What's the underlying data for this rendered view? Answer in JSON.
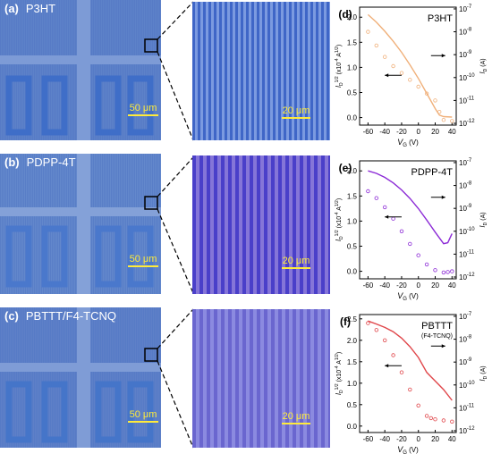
{
  "panels": [
    {
      "micro_label": "(a)",
      "material": "P3HT",
      "micro_scale": "50 μm",
      "zoom_scale": "20 μm",
      "plot_label": "(d)",
      "plot_title": "P3HT",
      "plot_subtitle": "",
      "line_color": "#f0b07a",
      "micro_color": "#5d82c9",
      "zoom_stripe_color": "#3f66c7",
      "zoom_bg_color": "#7b9ae0"
    },
    {
      "micro_label": "(b)",
      "material": "PDPP-4T",
      "micro_scale": "50 μm",
      "zoom_scale": "20 μm",
      "plot_label": "(e)",
      "plot_title": "PDPP-4T",
      "plot_subtitle": "",
      "line_color": "#8c2bd6",
      "micro_color": "#6388cc",
      "zoom_stripe_color": "#4a3fc9",
      "zoom_bg_color": "#8575d8"
    },
    {
      "micro_label": "(c)",
      "material": "PBTTT/F4-TCNQ",
      "micro_scale": "50 μm",
      "zoom_scale": "20 μm",
      "plot_label": "(f)",
      "plot_title": "PBTTT",
      "plot_subtitle": "(F4-TCNQ)",
      "line_color": "#e0464a",
      "micro_color": "#5e80c8",
      "zoom_stripe_color": "#6a66cf",
      "zoom_bg_color": "#8b8ae0"
    }
  ],
  "axis_text": {
    "xlabel": "V",
    "xlabel_sub": "G",
    "xlabel_unit": " (V)",
    "ylabel_left": "I",
    "ylabel_left_sub": "D",
    "ylabel_left_sup": "1/2",
    "ylabel_left_unit": " (x10",
    "ylabel_left_unit_sup": "-4",
    "ylabel_left_unit_tail": " A",
    "ylabel_left_unit_sup2": "1/2",
    "ylabel_left_unit_close": ")",
    "ylabel_right": "I",
    "ylabel_right_sub": "D",
    "ylabel_right_unit": " (A)"
  },
  "chart_data": [
    {
      "type": "line",
      "title": "P3HT",
      "x": [
        -60,
        -50,
        -40,
        -30,
        -20,
        -10,
        0,
        10,
        20,
        25,
        30,
        40
      ],
      "xlim": [
        -70,
        45
      ],
      "xticks": [
        "-60",
        "-40",
        "-20",
        "0",
        "20",
        "40"
      ],
      "ylim_left": [
        -0.15,
        2.2
      ],
      "yticks_left": [
        "0.0",
        "0.5",
        "1.0",
        "1.5",
        "2.0"
      ],
      "yticks_right": [
        "10",
        "10",
        "10",
        "10",
        "10",
        "10"
      ],
      "yticks_right_exp": [
        "-7",
        "-8",
        "-9",
        "-10",
        "-11",
        "-12"
      ],
      "series": [
        {
          "name": "",
          "axis": "left",
          "style": "line",
          "values": [
            2.05,
            1.9,
            1.72,
            1.52,
            1.3,
            1.05,
            0.78,
            0.48,
            0.18,
            0.05,
            0.02,
            0.01
          ]
        },
        {
          "name": "",
          "axis": "right",
          "style": "markers",
          "values": [
            -8.0,
            -8.6,
            -9.1,
            -9.5,
            -9.8,
            -10.1,
            -10.4,
            -10.7,
            -11.0,
            -11.5,
            -11.85,
            -11.9
          ]
        }
      ]
    },
    {
      "type": "line",
      "title": "PDPP-4T",
      "x": [
        -60,
        -50,
        -40,
        -30,
        -20,
        -10,
        0,
        10,
        20,
        30,
        35,
        40
      ],
      "xlim": [
        -70,
        45
      ],
      "xticks": [
        "-60",
        "-40",
        "-20",
        "0",
        "20",
        "40"
      ],
      "ylim_left": [
        -0.15,
        2.2
      ],
      "yticks_left": [
        "0.0",
        "0.5",
        "1.0",
        "1.5",
        "2.0"
      ],
      "yticks_right": [
        "10",
        "10",
        "10",
        "10",
        "10",
        "10"
      ],
      "yticks_right_exp": [
        "-7",
        "-8",
        "-9",
        "-10",
        "-11",
        "-12"
      ],
      "series": [
        {
          "name": "",
          "axis": "left",
          "style": "line",
          "values": [
            2.0,
            1.95,
            1.87,
            1.76,
            1.62,
            1.45,
            1.25,
            1.02,
            0.78,
            0.55,
            0.57,
            0.75
          ]
        },
        {
          "name": "",
          "axis": "right",
          "style": "markers",
          "values": [
            -8.25,
            -8.55,
            -8.95,
            -9.45,
            -10.0,
            -10.55,
            -11.05,
            -11.45,
            -11.7,
            -11.8,
            -11.78,
            -11.75
          ]
        }
      ]
    },
    {
      "type": "line",
      "title": "PBTTT (F4-TCNQ)",
      "x": [
        -60,
        -50,
        -40,
        -30,
        -20,
        -10,
        0,
        10,
        15,
        20,
        30,
        40
      ],
      "xlim": [
        -70,
        45
      ],
      "xticks": [
        "-60",
        "-40",
        "-20",
        "0",
        "20",
        "40"
      ],
      "ylim_left": [
        -0.15,
        2.6
      ],
      "yticks_left": [
        "0.0",
        "0.5",
        "1.0",
        "1.5",
        "2.0",
        "2.5"
      ],
      "yticks_right": [
        "10",
        "10",
        "10",
        "10",
        "10",
        "10"
      ],
      "yticks_right_exp": [
        "-7",
        "-8",
        "-9",
        "-10",
        "-11",
        "-12"
      ],
      "series": [
        {
          "name": "",
          "axis": "left",
          "style": "line",
          "values": [
            2.45,
            2.38,
            2.3,
            2.2,
            2.05,
            1.85,
            1.6,
            1.25,
            1.15,
            1.05,
            0.85,
            0.6
          ]
        },
        {
          "name": "",
          "axis": "right",
          "style": "markers",
          "values": [
            -7.3,
            -7.6,
            -8.05,
            -8.7,
            -9.45,
            -10.2,
            -10.9,
            -11.35,
            -11.45,
            -11.5,
            -11.55,
            -11.6
          ]
        }
      ]
    }
  ]
}
